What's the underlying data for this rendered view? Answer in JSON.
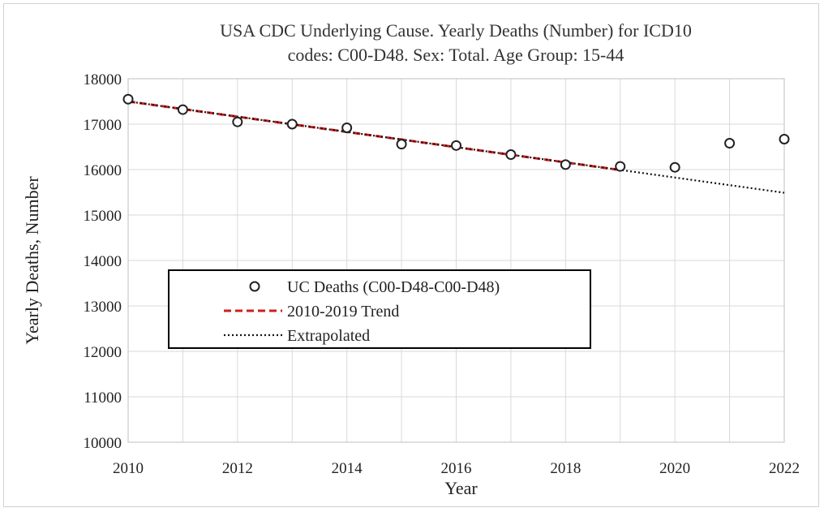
{
  "chart_data": {
    "type": "scatter",
    "title_lines": [
      "USA CDC Underlying Cause. Yearly Deaths (Number) for ICD10",
      "codes: C00-D48. Sex: Total. Age Group: 15-44"
    ],
    "xlabel": "Year",
    "ylabel": "Yearly Deaths, Number",
    "xlim": [
      2010,
      2022
    ],
    "ylim": [
      10000,
      18000
    ],
    "x_ticks": [
      2010,
      2012,
      2014,
      2016,
      2018,
      2020,
      2022
    ],
    "y_ticks": [
      10000,
      11000,
      12000,
      13000,
      14000,
      15000,
      16000,
      17000,
      18000
    ],
    "grid": true,
    "legend_position": "center-left",
    "series": [
      {
        "name": "UC Deaths (C00-D48-C00-D48)",
        "kind": "markers",
        "marker": "open-circle",
        "color": "#222222",
        "x": [
          2010,
          2011,
          2012,
          2013,
          2014,
          2015,
          2016,
          2017,
          2018,
          2019,
          2020,
          2021,
          2022
        ],
        "y": [
          17550,
          17320,
          17050,
          17000,
          16920,
          16560,
          16530,
          16330,
          16110,
          16070,
          16050,
          16580,
          16670
        ]
      },
      {
        "name": "2010-2019 Trend",
        "kind": "line",
        "style": "dashed",
        "color": "#cc1f1f",
        "x": [
          2010,
          2019
        ],
        "y": [
          17500,
          15990
        ]
      },
      {
        "name": "Extrapolated",
        "kind": "line",
        "style": "dotted",
        "color": "#111111",
        "x": [
          2010,
          2022
        ],
        "y": [
          17500,
          15490
        ]
      }
    ]
  }
}
